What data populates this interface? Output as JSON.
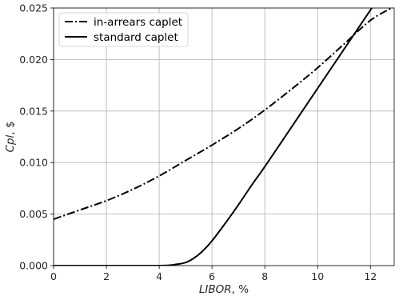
{
  "chart_data": {
    "type": "line",
    "title": "",
    "xlabel_italic": "LIBOR",
    "xlabel_suffix": ", %",
    "ylabel_italic": "Cpl",
    "ylabel_suffix": ", $",
    "xlim": [
      0,
      12.9
    ],
    "ylim": [
      0,
      0.025
    ],
    "xticks": [
      0,
      2,
      4,
      6,
      8,
      10,
      12
    ],
    "xtick_labels": [
      "0",
      "2",
      "4",
      "6",
      "8",
      "10",
      "12"
    ],
    "yticks": [
      0,
      0.005,
      0.01,
      0.015,
      0.02,
      0.025
    ],
    "ytick_labels": [
      "0.000",
      "0.005",
      "0.010",
      "0.015",
      "0.020",
      "0.025"
    ],
    "grid": true,
    "legend_position": "top-left",
    "series": [
      {
        "name": "in-arrears caplet",
        "style": "dashdot",
        "color": "#000000",
        "x": [
          0,
          1,
          2,
          3,
          4,
          5,
          6,
          7,
          8,
          9,
          10,
          11,
          12,
          12.8
        ],
        "y": [
          0.0045,
          0.0054,
          0.0063,
          0.0074,
          0.0087,
          0.0102,
          0.0117,
          0.0133,
          0.0151,
          0.0171,
          0.0192,
          0.0215,
          0.0238,
          0.025
        ]
      },
      {
        "name": "standard caplet",
        "style": "solid",
        "color": "#000000",
        "x": [
          0,
          1,
          2,
          3,
          4,
          4.3,
          4.6,
          5,
          5.3,
          5.6,
          6,
          6.5,
          7,
          7.5,
          8,
          9,
          10,
          11,
          12,
          12.9
        ],
        "y": [
          0,
          0,
          0,
          0,
          0,
          2e-05,
          0.0001,
          0.0003,
          0.0007,
          0.0013,
          0.0024,
          0.0041,
          0.0059,
          0.0078,
          0.0096,
          0.0134,
          0.0172,
          0.021,
          0.0248,
          0.0282
        ]
      }
    ]
  }
}
